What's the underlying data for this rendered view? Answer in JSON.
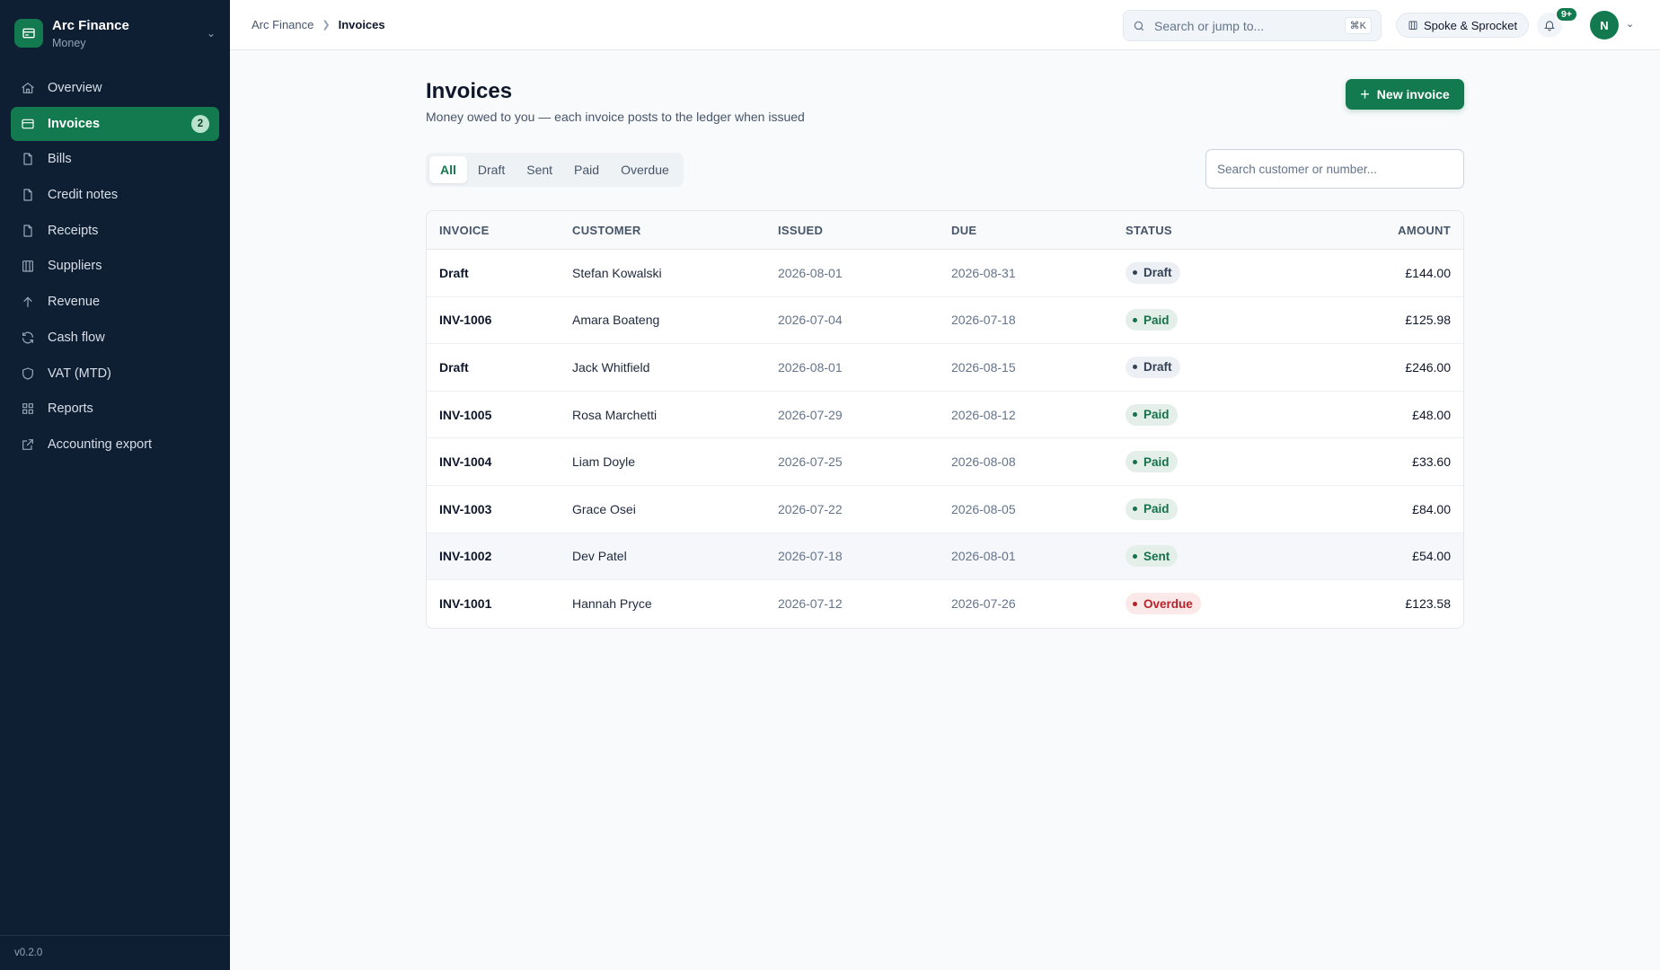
{
  "app": {
    "name": "Arc Finance",
    "sub": "Money",
    "version": "v0.2.0"
  },
  "sidebar": {
    "items": [
      {
        "label": "Overview",
        "icon": "home-icon"
      },
      {
        "label": "Invoices",
        "icon": "card-icon",
        "badge": "2",
        "active": true
      },
      {
        "label": "Bills",
        "icon": "file-icon"
      },
      {
        "label": "Credit notes",
        "icon": "file-icon"
      },
      {
        "label": "Receipts",
        "icon": "file-icon"
      },
      {
        "label": "Suppliers",
        "icon": "building-icon"
      },
      {
        "label": "Revenue",
        "icon": "arrow-up-icon"
      },
      {
        "label": "Cash flow",
        "icon": "refresh-icon"
      },
      {
        "label": "VAT (MTD)",
        "icon": "shield-icon"
      },
      {
        "label": "Reports",
        "icon": "grid-icon"
      },
      {
        "label": "Accounting export",
        "icon": "external-link-icon"
      }
    ]
  },
  "topbar": {
    "breadcrumb": [
      "Arc Finance",
      "Invoices"
    ],
    "search_placeholder": "Search or jump to...",
    "search_shortcut": "⌘K",
    "org": "Spoke & Sprocket",
    "notifications": "9+",
    "avatar": "N"
  },
  "page": {
    "title": "Invoices",
    "subtitle": "Money owed to you — each invoice posts to the ledger when issued",
    "new_button": "New invoice",
    "tabs": [
      "All",
      "Draft",
      "Sent",
      "Paid",
      "Overdue"
    ],
    "active_tab": "All",
    "filter_placeholder": "Search customer or number..."
  },
  "table": {
    "columns": [
      "Invoice",
      "Customer",
      "Issued",
      "Due",
      "Status",
      "Amount"
    ],
    "rows": [
      {
        "invoice": "Draft",
        "customer": "Stefan Kowalski",
        "issued": "2026-08-01",
        "due": "2026-08-31",
        "status": "Draft",
        "amount": "£144.00"
      },
      {
        "invoice": "INV-1006",
        "customer": "Amara Boateng",
        "issued": "2026-07-04",
        "due": "2026-07-18",
        "status": "Paid",
        "amount": "£125.98"
      },
      {
        "invoice": "Draft",
        "customer": "Jack Whitfield",
        "issued": "2026-08-01",
        "due": "2026-08-15",
        "status": "Draft",
        "amount": "£246.00"
      },
      {
        "invoice": "INV-1005",
        "customer": "Rosa Marchetti",
        "issued": "2026-07-29",
        "due": "2026-08-12",
        "status": "Paid",
        "amount": "£48.00"
      },
      {
        "invoice": "INV-1004",
        "customer": "Liam Doyle",
        "issued": "2026-07-25",
        "due": "2026-08-08",
        "status": "Paid",
        "amount": "£33.60"
      },
      {
        "invoice": "INV-1003",
        "customer": "Grace Osei",
        "issued": "2026-07-22",
        "due": "2026-08-05",
        "status": "Paid",
        "amount": "£84.00"
      },
      {
        "invoice": "INV-1002",
        "customer": "Dev Patel",
        "issued": "2026-07-18",
        "due": "2026-08-01",
        "status": "Sent",
        "amount": "£54.00"
      },
      {
        "invoice": "INV-1001",
        "customer": "Hannah Pryce",
        "issued": "2026-07-12",
        "due": "2026-07-26",
        "status": "Overdue",
        "amount": "£123.58"
      }
    ]
  },
  "colors": {
    "accent": "#137a4f",
    "sidebar": "#0f1f33",
    "overdue": "#b4232a"
  }
}
